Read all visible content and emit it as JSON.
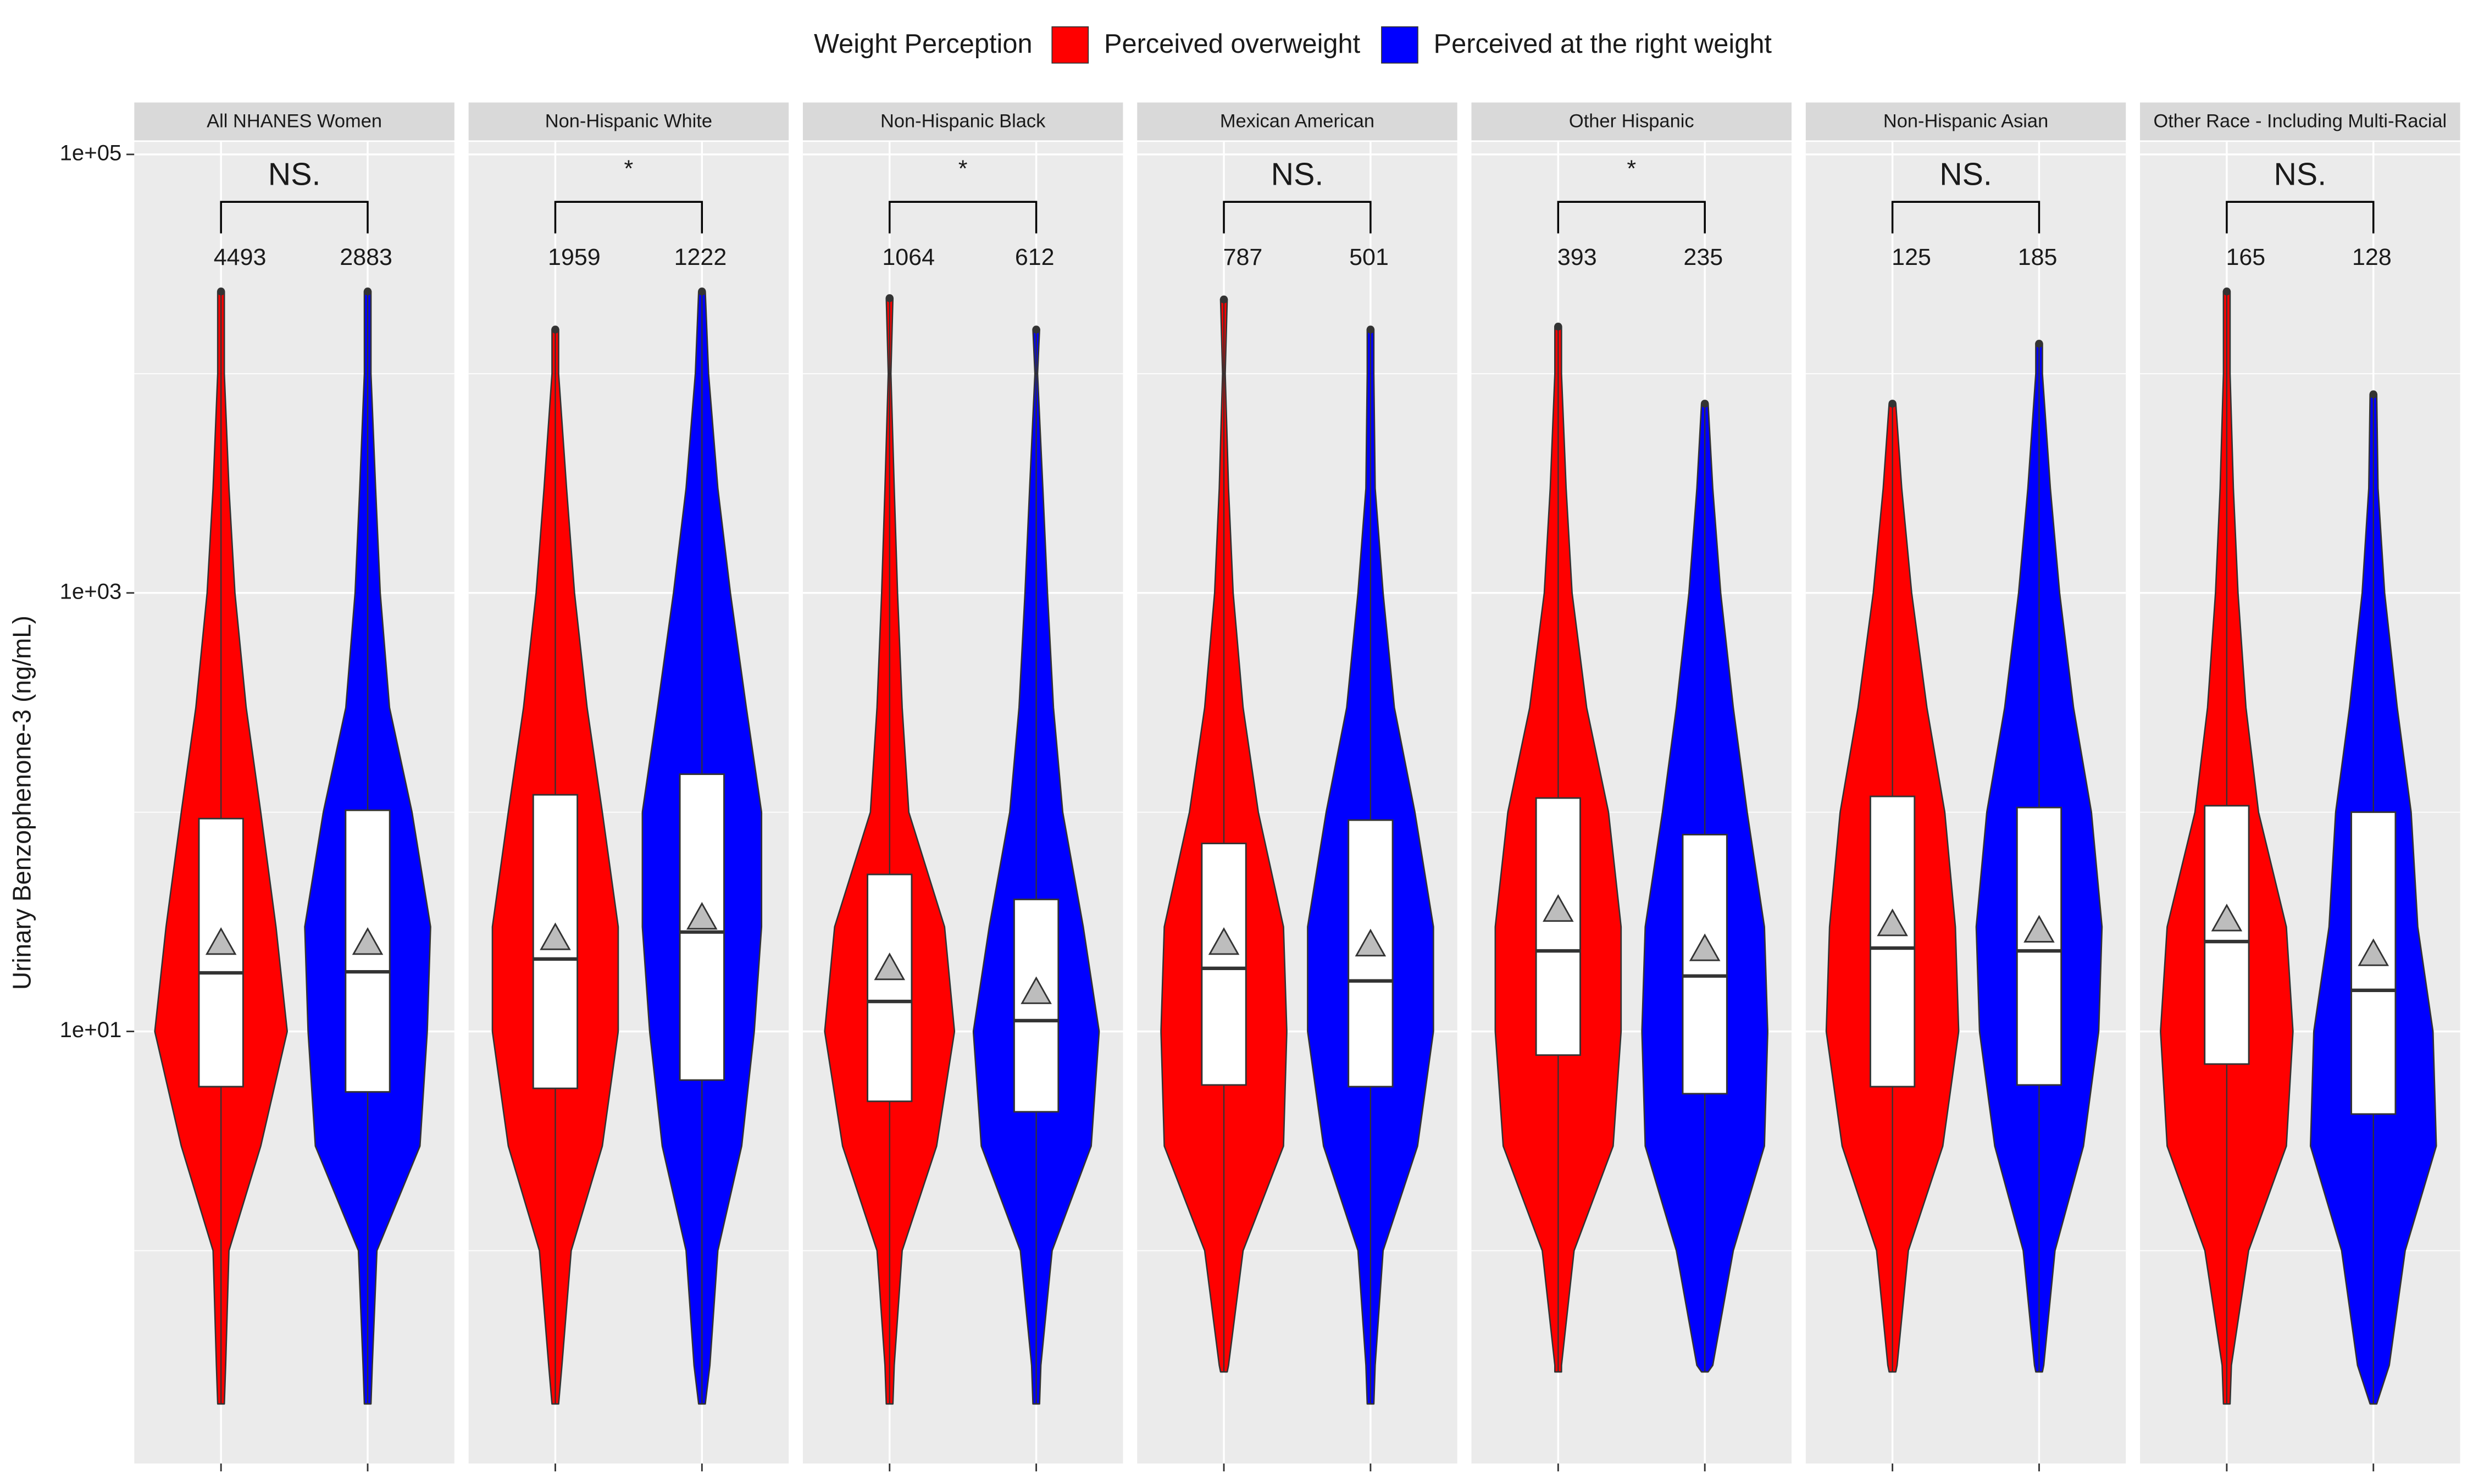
{
  "chart_data": {
    "type": "violin",
    "legend_title": "Weight Perception",
    "legend_position": "top",
    "series": [
      {
        "name": "Perceived overweight",
        "color": "#ff0000"
      },
      {
        "name": "Perceived at the right weight",
        "color": "#0000ff"
      }
    ],
    "ylabel": "Urinary Benzophenone-3 (ng/mL)",
    "log_y": true,
    "ylim": [
      0.107,
      114000
    ],
    "yticks": [
      {
        "value": 100000,
        "label": "1e+05"
      },
      {
        "value": 1000,
        "label": "1e+03"
      },
      {
        "value": 10,
        "label": "1e+01"
      }
    ],
    "minor_yticks": [
      10000,
      100,
      1
    ],
    "density_at": [
      0.3,
      1,
      3,
      10,
      30,
      100,
      300,
      1000,
      3000,
      10000
    ],
    "facets": [
      {
        "title": "All NHANES Women",
        "annotation": "NS.",
        "groups": [
          {
            "n": 4493,
            "min": 0.2,
            "q1": 5.6,
            "median": 18.5,
            "q3": 93.5,
            "max": 23700,
            "mean": 25.3,
            "density": [
              0.07,
              0.12,
              0.6,
              1,
              0.83,
              0.6,
              0.38,
              0.21,
              0.12,
              0.05
            ]
          },
          {
            "n": 2883,
            "min": 0.2,
            "q1": 5.3,
            "median": 18.7,
            "q3": 102,
            "max": 23700,
            "mean": 25.3,
            "density": [
              0.07,
              0.14,
              0.79,
              0.9,
              0.95,
              0.67,
              0.33,
              0.19,
              0.12,
              0.05
            ]
          }
        ]
      },
      {
        "title": "Non-Hispanic White",
        "annotation": "*",
        "groups": [
          {
            "n": 1959,
            "min": 0.2,
            "q1": 5.5,
            "median": 21.4,
            "q3": 120,
            "max": 15900,
            "mean": 26.6,
            "density": [
              0.1,
              0.24,
              0.71,
              0.95,
              0.95,
              0.71,
              0.48,
              0.29,
              0.17,
              0.05
            ]
          },
          {
            "n": 1222,
            "min": 0.2,
            "q1": 6.0,
            "median": 28.4,
            "q3": 149,
            "max": 23700,
            "mean": 33,
            "density": [
              0.12,
              0.24,
              0.6,
              0.79,
              0.9,
              0.9,
              0.67,
              0.43,
              0.24,
              0.1
            ]
          }
        ]
      },
      {
        "title": "Non-Hispanic Black",
        "annotation": "*",
        "groups": [
          {
            "n": 1064,
            "min": 0.2,
            "q1": 4.8,
            "median": 13.7,
            "q3": 52,
            "max": 22100,
            "mean": 19.4,
            "density": [
              0.07,
              0.19,
              0.71,
              0.98,
              0.83,
              0.29,
              0.19,
              0.12,
              0.07,
              0.02
            ]
          },
          {
            "n": 612,
            "min": 0.2,
            "q1": 4.3,
            "median": 11.2,
            "q3": 40,
            "max": 15900,
            "mean": 15.1,
            "density": [
              0.07,
              0.24,
              0.83,
              0.95,
              0.71,
              0.4,
              0.26,
              0.17,
              0.1,
              0.02
            ]
          }
        ]
      },
      {
        "title": "Mexican American",
        "annotation": "NS.",
        "groups": [
          {
            "n": 787,
            "min": 0.28,
            "q1": 5.7,
            "median": 19.4,
            "q3": 72,
            "max": 21800,
            "mean": 25.3,
            "density": [
              0.07,
              0.29,
              0.9,
              0.95,
              0.9,
              0.52,
              0.29,
              0.14,
              0.07,
              0.02
            ]
          },
          {
            "n": 501,
            "min": 0.2,
            "q1": 5.6,
            "median": 17,
            "q3": 92,
            "max": 15900,
            "mean": 24.9,
            "density": [
              0.07,
              0.19,
              0.71,
              0.95,
              0.95,
              0.67,
              0.36,
              0.19,
              0.07,
              0.05
            ]
          }
        ]
      },
      {
        "title": "Other Hispanic",
        "annotation": "*",
        "groups": [
          {
            "n": 393,
            "min": 0.28,
            "q1": 7.8,
            "median": 23.3,
            "q3": 116,
            "max": 16400,
            "mean": 35.8,
            "density": [
              0.05,
              0.24,
              0.83,
              0.95,
              0.95,
              0.76,
              0.43,
              0.21,
              0.12,
              0.05
            ]
          },
          {
            "n": 235,
            "min": 0.28,
            "q1": 5.2,
            "median": 17.9,
            "q3": 79,
            "max": 7300,
            "mean": 23.7,
            "density": [
              0.12,
              0.43,
              0.9,
              0.95,
              0.9,
              0.64,
              0.43,
              0.24,
              0.12,
              null
            ]
          }
        ]
      },
      {
        "title": "Non-Hispanic Asian",
        "annotation": "NS.",
        "groups": [
          {
            "n": 125,
            "min": 0.28,
            "q1": 5.6,
            "median": 24,
            "q3": 118,
            "max": 7300,
            "mean": 30.8,
            "density": [
              0.07,
              0.24,
              0.76,
              1,
              0.95,
              0.79,
              0.52,
              0.29,
              0.14,
              null
            ]
          },
          {
            "n": 185,
            "min": 0.28,
            "q1": 5.7,
            "median": 23.3,
            "q3": 105,
            "max": 13700,
            "mean": 28.8,
            "density": [
              0.07,
              0.24,
              0.67,
              0.9,
              0.95,
              0.79,
              0.52,
              0.31,
              0.17,
              0.05
            ]
          }
        ]
      },
      {
        "title": "Other Race - Including Multi-Racial",
        "annotation": "NS.",
        "groups": [
          {
            "n": 165,
            "min": 0.2,
            "q1": 7.1,
            "median": 25.7,
            "q3": 107,
            "max": 23700,
            "mean": 32.4,
            "density": [
              0.07,
              0.33,
              0.9,
              1,
              0.9,
              0.48,
              0.29,
              0.17,
              0.1,
              0.05
            ]
          },
          {
            "n": 128,
            "min": 0.2,
            "q1": 4.2,
            "median": 15.4,
            "q3": 100,
            "max": 8050,
            "mean": 22.5,
            "density": [
              0.24,
              0.48,
              0.95,
              0.9,
              0.67,
              0.57,
              0.36,
              0.17,
              0.07,
              null
            ]
          }
        ]
      }
    ]
  }
}
